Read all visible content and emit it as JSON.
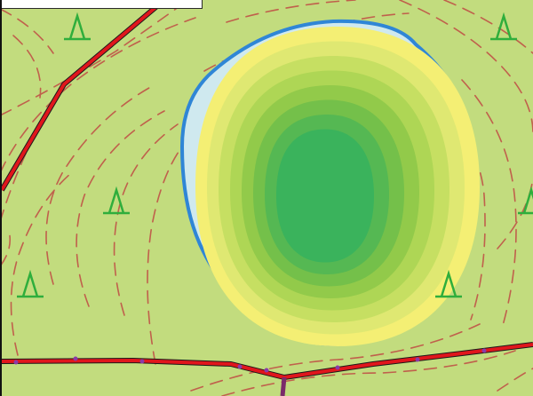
{
  "map": {
    "background_color": "#c2dc7e",
    "contour_line_color": "#c0604c",
    "road_color": "#e0161c",
    "road_edge_color": "#1a1a1a",
    "lake_outline_color": "#2f86d6",
    "lake_fill_color": "#cfe9ef",
    "vegetation_symbol_color": "#2fae3c",
    "vegetation_symbol_glyph": "Δ",
    "depth_band_colors": [
      "#f4ef74",
      "#dfe872",
      "#c6df62",
      "#aed655",
      "#92ca4a",
      "#74c04a",
      "#55b853",
      "#3ab35c"
    ],
    "overview_box": {
      "fill": "#ffffff",
      "border": "#2a2a2a"
    }
  }
}
